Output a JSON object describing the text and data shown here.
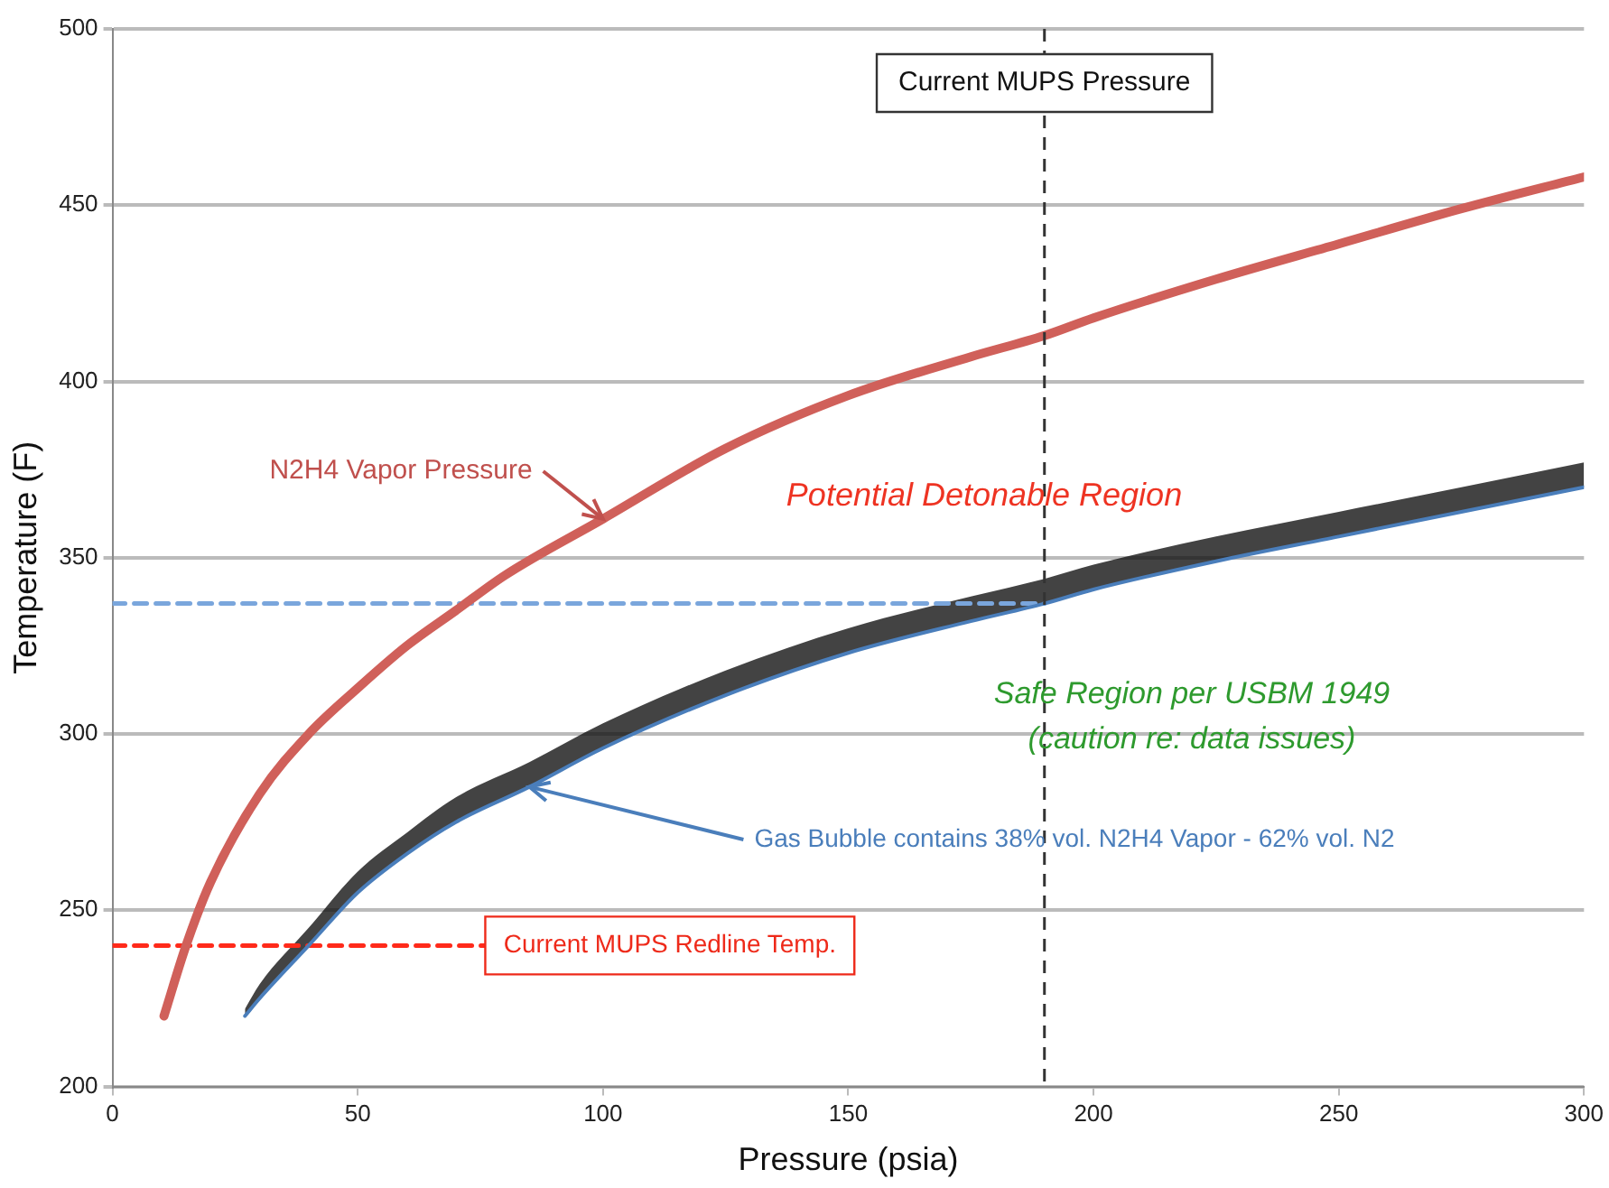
{
  "chart_data": {
    "type": "line",
    "xlabel": "Pressure (psia)",
    "ylabel": "Temperature (F)",
    "xlim": [
      0,
      300
    ],
    "xticks": [
      0,
      50,
      100,
      150,
      200,
      250,
      300
    ],
    "ylim": [
      200,
      500
    ],
    "yticks": [
      200,
      250,
      300,
      350,
      400,
      450,
      500
    ],
    "grid": "y",
    "legend": false,
    "marker": "none",
    "series": [
      {
        "color": "#d0605a",
        "x": [
          10.5,
          15,
          20,
          30,
          40,
          50,
          60,
          70,
          80,
          100,
          125,
          150,
          175,
          190,
          200,
          225,
          250,
          275,
          300
        ],
        "values": [
          220,
          240,
          258,
          283,
          300,
          313,
          325,
          335,
          345,
          361,
          381,
          396,
          407,
          413,
          418,
          429,
          439,
          449,
          458
        ]
      },
      {
        "color": "#4a7ebb",
        "x": [
          27,
          30,
          40,
          50,
          60,
          70,
          85,
          100,
          125,
          150,
          175,
          190,
          200,
          225,
          250,
          275,
          300
        ],
        "values": [
          220,
          225,
          240,
          255,
          266,
          275,
          285,
          296,
          311,
          323,
          332,
          337,
          341,
          349,
          356,
          363,
          370
        ],
        "lower": [
          220,
          225,
          240,
          255,
          266,
          275,
          285,
          296,
          311,
          323,
          332,
          337,
          341,
          349,
          356,
          363,
          370
        ],
        "upper": [
          222,
          229,
          245,
          261,
          272,
          282,
          292,
          303,
          318,
          330,
          339,
          344,
          348,
          356,
          363,
          370,
          377
        ]
      },
      {
        "color": "#ff2a1a",
        "line_style": "dashed",
        "x": [
          0,
          76
        ],
        "values": [
          240,
          240
        ]
      },
      {
        "color": "#7aa6dc",
        "line_style": "dashed",
        "x": [
          0,
          190
        ],
        "values": [
          337,
          337
        ]
      }
    ],
    "ref_lines": [
      {
        "axis": "x",
        "value": 190,
        "label": "Current MUPS Pressure",
        "color": "#333333",
        "line_style": "dashed"
      }
    ],
    "annotations": [
      {
        "text": "N2H4 Vapor Pressure",
        "x": 100,
        "y": 361
      },
      "Potential Detonable Region",
      "Safe Region per USBM 1949",
      "(caution re: data issues)",
      {
        "text": "Gas Bubble contains 38% vol. N2H4 Vapor - 62% vol. N2",
        "x": 85,
        "y": 285
      },
      {
        "text": "Current MUPS Redline Temp.",
        "x": 76,
        "y": 240
      }
    ]
  }
}
